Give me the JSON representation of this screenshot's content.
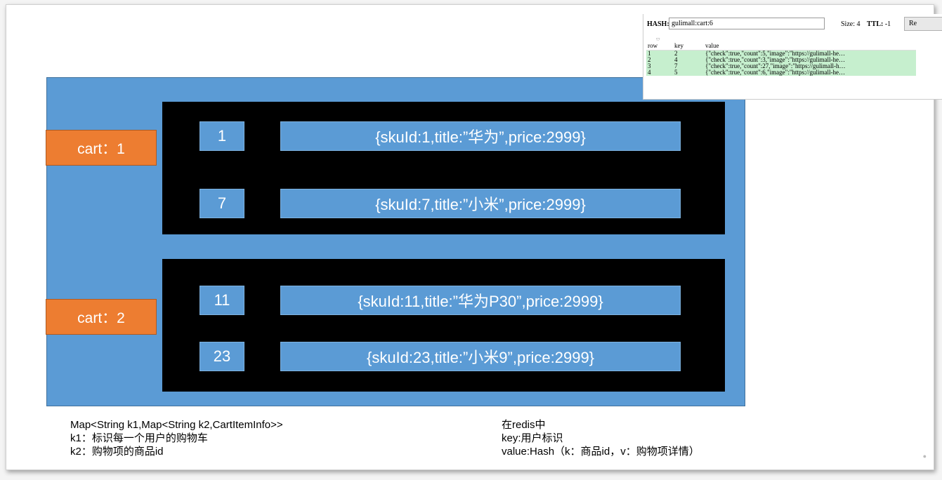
{
  "diagram": {
    "carts": [
      {
        "label": "cart：1",
        "items": [
          {
            "key": "1",
            "value": "{skuId:1,title:”华为”,price:2999}"
          },
          {
            "key": "7",
            "value": "{skuId:7,title:”小米”,price:2999}"
          }
        ]
      },
      {
        "label": "cart：2",
        "items": [
          {
            "key": "11",
            "value": "{skuId:11,title:”华为P30”,price:2999}"
          },
          {
            "key": "23",
            "value": "{skuId:23,title:”小米9”,price:2999}"
          }
        ]
      }
    ],
    "colors": {
      "container": "#5b9bd5",
      "inner": "#000000",
      "cart": "#ed7d31"
    }
  },
  "notes_left": [
    "Map<String k1,Map<String k2,CartItemInfo>>",
    "k1：标识每一个用户的购物车",
    "k2：购物项的商品id"
  ],
  "notes_right": [
    "在redis中",
    "key:用户标识",
    "value:Hash（k：商品id，v：购物项详情）"
  ],
  "redis": {
    "hash_label": "HASH:",
    "hash_key": "gulimall:cart:6",
    "size_label": "Size: 4",
    "ttl_label": "TTL:",
    "ttl_value": "-1",
    "reload_label": "Re",
    "columns": [
      "row",
      "key",
      "value"
    ],
    "rows": [
      {
        "row": "1",
        "key": "2",
        "value": "{\"check\":true,\"count\":5,\"image\":\"https://gulimall-he…"
      },
      {
        "row": "2",
        "key": "4",
        "value": "{\"check\":true,\"count\":3,\"image\":\"https://gulimall-he…"
      },
      {
        "row": "3",
        "key": "7",
        "value": "{\"check\":true,\"count\":27,\"image\":\"https://gulimall-h…"
      },
      {
        "row": "4",
        "key": "5",
        "value": "{\"check\":true,\"count\":6,\"image\":\"https://gulimall-he…"
      }
    ],
    "row_color": "#c6efce"
  }
}
